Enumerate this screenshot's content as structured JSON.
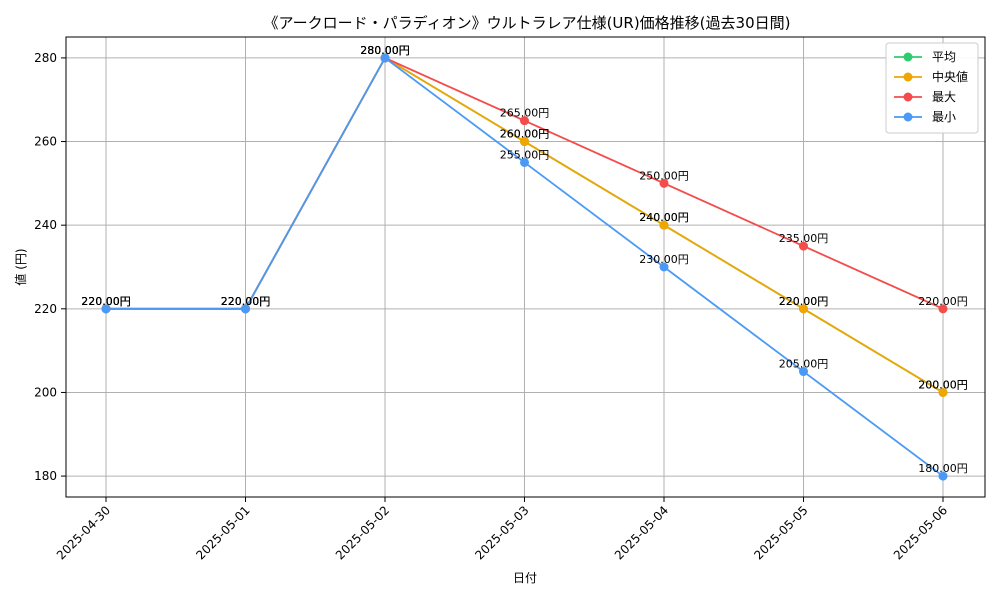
{
  "chart_data": {
    "type": "line",
    "title": "《アークロード・パラディオン》ウルトラレア仕様(UR)価格推移(過去30日間)",
    "xlabel": "日付",
    "ylabel": "値 (円)",
    "categories": [
      "2025-04-30",
      "2025-05-01",
      "2025-05-02",
      "2025-05-03",
      "2025-05-04",
      "2025-05-05",
      "2025-05-06"
    ],
    "ylim": [
      175,
      285
    ],
    "yticks": [
      180,
      200,
      220,
      240,
      260,
      280
    ],
    "grid": true,
    "legend_position": "top-right",
    "value_suffix": "円",
    "series": [
      {
        "name": "平均",
        "color": "#2ecc71",
        "values": [
          220,
          220,
          280,
          260,
          240,
          220,
          200
        ]
      },
      {
        "name": "中央値",
        "color": "#f0a500",
        "values": [
          220,
          220,
          280,
          260,
          240,
          220,
          200
        ]
      },
      {
        "name": "最大",
        "color": "#f44b4b",
        "values": [
          220,
          220,
          280,
          265,
          250,
          235,
          220
        ]
      },
      {
        "name": "最小",
        "color": "#4a9af5",
        "values": [
          220,
          220,
          280,
          255,
          230,
          205,
          180
        ]
      }
    ]
  }
}
